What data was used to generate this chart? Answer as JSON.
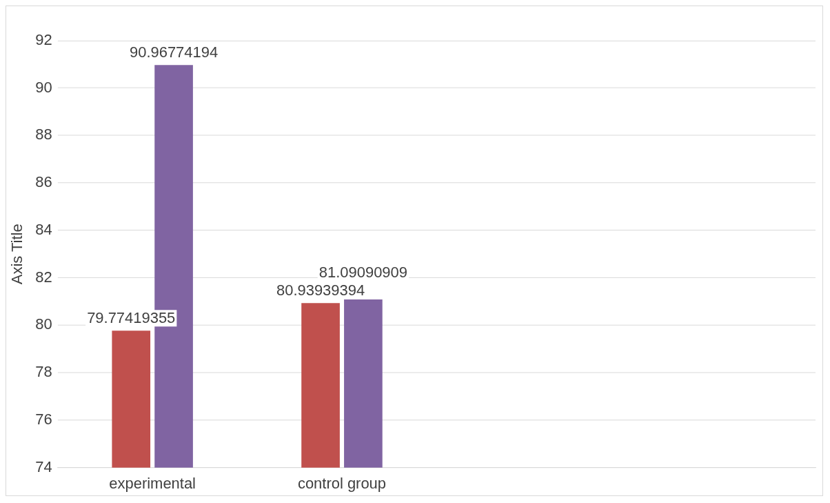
{
  "chart_data": {
    "type": "bar",
    "ylabel": "Axis Title",
    "categories": [
      "experimental",
      "control group",
      null,
      null
    ],
    "series": [
      {
        "color": "#c0504d",
        "values": [
          79.77419355,
          80.93939394,
          null,
          null
        ]
      },
      {
        "color": "#8064a2",
        "values": [
          90.96774194,
          81.09090909,
          null,
          null
        ]
      }
    ],
    "ylim": [
      74,
      92
    ],
    "yticks": [
      74,
      76,
      78,
      80,
      82,
      84,
      86,
      88,
      90,
      92
    ],
    "grid": "y",
    "legend": false,
    "data_labels": true
  }
}
